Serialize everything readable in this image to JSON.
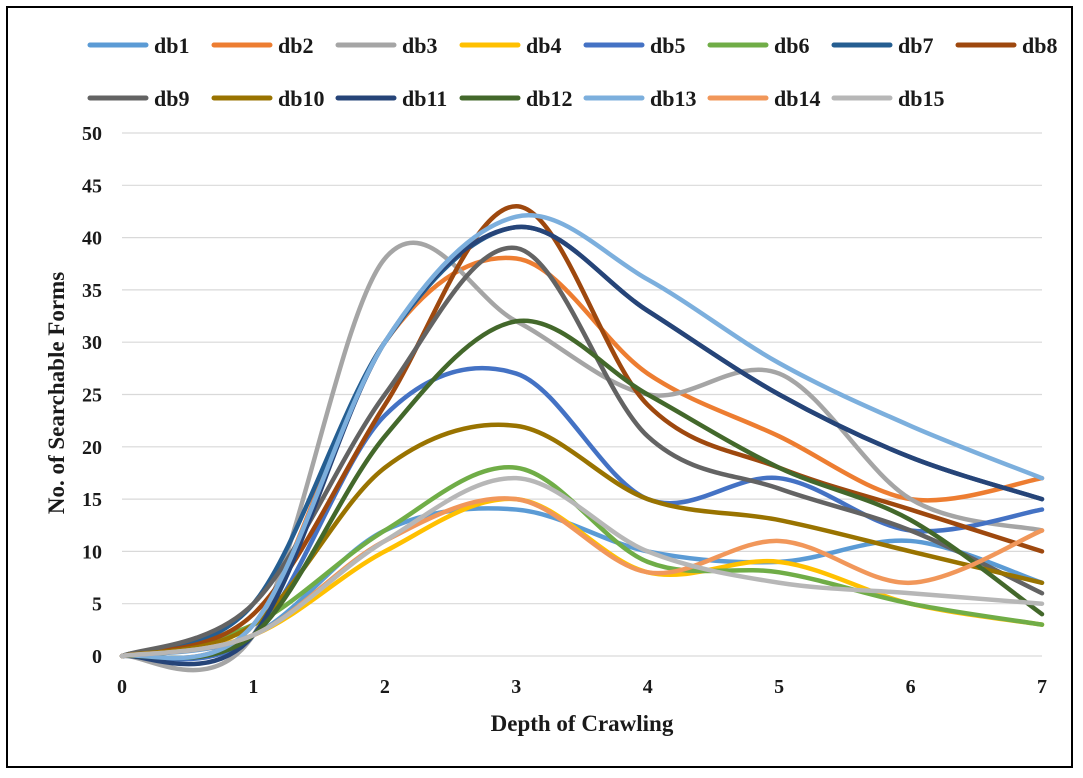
{
  "chart_data": {
    "type": "line",
    "title": "",
    "xlabel": "Depth of Crawling",
    "ylabel": "No. of Searchable Forms",
    "x": [
      0,
      1,
      2,
      3,
      4,
      5,
      6,
      7
    ],
    "xlim": [
      0,
      7
    ],
    "ylim": [
      0,
      50
    ],
    "xticks": [
      "0",
      "1",
      "2",
      "3",
      "4",
      "5",
      "6",
      "7"
    ],
    "yticks": [
      "0",
      "5",
      "10",
      "15",
      "20",
      "25",
      "30",
      "35",
      "40",
      "45",
      "50"
    ],
    "grid": "horizontal",
    "legend_position": "top",
    "smooth": true,
    "series": [
      {
        "name": "db1",
        "color": "#5b9bd5",
        "values": [
          0,
          2,
          12,
          14,
          10,
          9,
          11,
          7
        ]
      },
      {
        "name": "db2",
        "color": "#ed7d31",
        "values": [
          0,
          3,
          30,
          38,
          27,
          21,
          15,
          17
        ]
      },
      {
        "name": "db3",
        "color": "#a5a5a5",
        "values": [
          0,
          2,
          38,
          32,
          25,
          27,
          15,
          12
        ]
      },
      {
        "name": "db4",
        "color": "#ffc000",
        "values": [
          0,
          2,
          10,
          15,
          8,
          9,
          5,
          3
        ]
      },
      {
        "name": "db5",
        "color": "#4472c4",
        "values": [
          0,
          2,
          23,
          27,
          15,
          17,
          12,
          14
        ]
      },
      {
        "name": "db6",
        "color": "#70ad47",
        "values": [
          0,
          3,
          12,
          18,
          9,
          8,
          5,
          3
        ]
      },
      {
        "name": "db7",
        "color": "#255e91",
        "values": [
          0,
          5,
          30,
          41,
          33,
          25,
          19,
          15
        ]
      },
      {
        "name": "db8",
        "color": "#9e480e",
        "values": [
          0,
          4,
          24,
          43,
          24,
          18,
          14,
          10
        ]
      },
      {
        "name": "db9",
        "color": "#636363",
        "values": [
          0,
          5,
          25,
          39,
          21,
          16,
          12,
          6
        ]
      },
      {
        "name": "db10",
        "color": "#997300",
        "values": [
          0,
          3,
          18,
          22,
          15,
          13,
          10,
          7
        ]
      },
      {
        "name": "db11",
        "color": "#264478",
        "values": [
          0,
          2,
          30,
          41,
          33,
          25,
          19,
          15
        ]
      },
      {
        "name": "db12",
        "color": "#43682b",
        "values": [
          0,
          2,
          21,
          32,
          25,
          18,
          13,
          4
        ]
      },
      {
        "name": "db13",
        "color": "#7cafdd",
        "values": [
          0,
          3,
          30,
          42,
          36,
          28,
          22,
          17
        ]
      },
      {
        "name": "db14",
        "color": "#f1975a",
        "values": [
          0,
          2,
          11,
          15,
          8,
          11,
          7,
          12
        ]
      },
      {
        "name": "db15",
        "color": "#b7b7b7",
        "values": [
          0,
          2,
          11,
          17,
          10,
          7,
          6,
          5
        ]
      }
    ]
  }
}
